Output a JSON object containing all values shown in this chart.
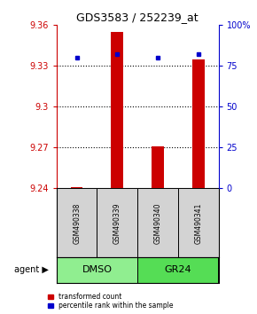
{
  "title": "GDS3583 / 252239_at",
  "samples": [
    "GSM490338",
    "GSM490339",
    "GSM490340",
    "GSM490341"
  ],
  "red_values": [
    9.241,
    9.355,
    9.271,
    9.335
  ],
  "blue_values": [
    80,
    82,
    80,
    82
  ],
  "bar_bottom": 9.24,
  "ylim_left": [
    9.24,
    9.36
  ],
  "ylim_right": [
    0,
    100
  ],
  "yticks_left": [
    9.24,
    9.27,
    9.3,
    9.33,
    9.36
  ],
  "yticks_right": [
    0,
    25,
    50,
    75,
    100
  ],
  "ytick_labels_left": [
    "9.24",
    "9.27",
    "9.3",
    "9.33",
    "9.36"
  ],
  "ytick_labels_right": [
    "0",
    "25",
    "50",
    "75",
    "100%"
  ],
  "hline_y": [
    9.27,
    9.3,
    9.33
  ],
  "left_axis_color": "#cc0000",
  "right_axis_color": "#0000cc",
  "legend_red": "transformed count",
  "legend_blue": "percentile rank within the sample",
  "agent_label": "agent",
  "sample_bg_color": "#d3d3d3",
  "dmso_color": "#90EE90",
  "gr24_color": "#55dd55",
  "bar_width": 0.3
}
